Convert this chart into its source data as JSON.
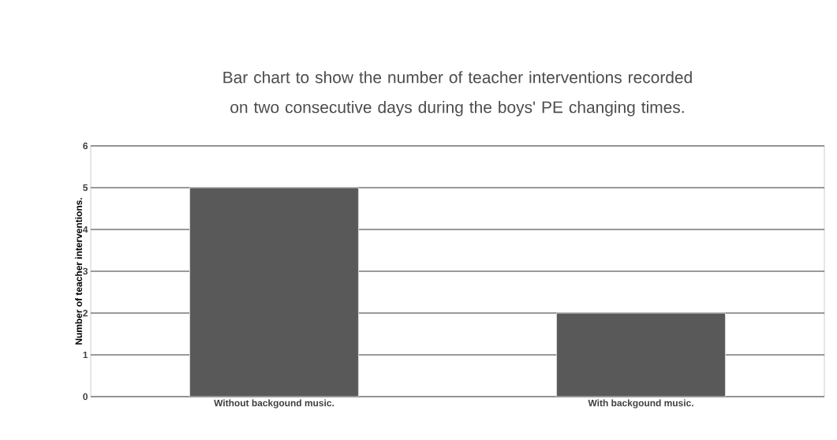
{
  "chart_data": {
    "type": "bar",
    "title": "Bar chart to show the number of teacher interventions recorded on two consecutive days during the boys' PE changing times.",
    "ylabel": "Number of teacher interventions.",
    "categories": [
      "Without backgound music.",
      "With backgound music."
    ],
    "values": [
      5,
      2
    ],
    "color": "#595959",
    "ylim": [
      0,
      6
    ],
    "yticks": [
      0,
      1,
      2,
      3,
      4,
      5,
      6
    ],
    "grid": "y"
  }
}
